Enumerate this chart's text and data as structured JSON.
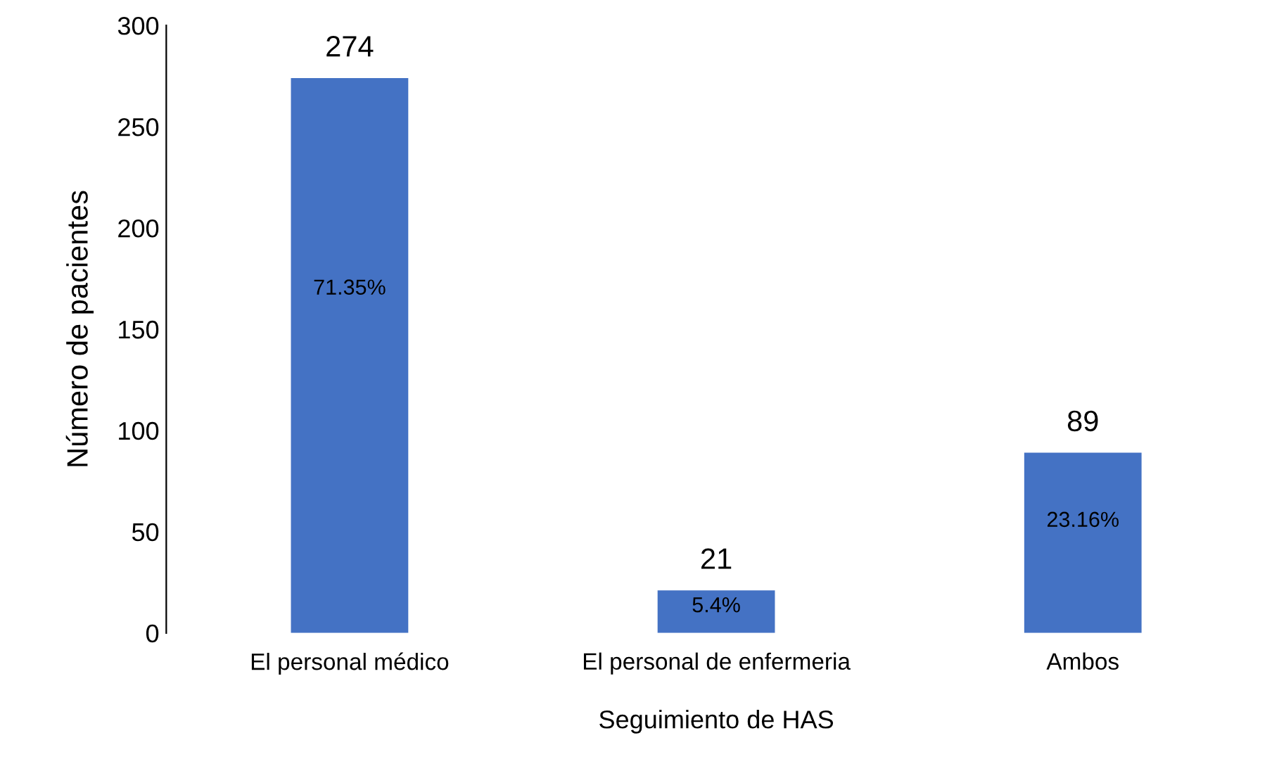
{
  "chart_data": {
    "type": "bar",
    "xlabel": "Seguimiento de HAS",
    "ylabel": "Número de pacientes",
    "categories": [
      "El personal médico",
      "El personal de enfermeria",
      "Ambos"
    ],
    "values": [
      274,
      21,
      89
    ],
    "color": "#4472c4",
    "data_labels": true,
    "annotations": [
      "71.35%",
      "5.4%",
      "23.16%"
    ],
    "ylim": [
      0,
      300
    ],
    "yticks": [
      0,
      50,
      100,
      150,
      200,
      250,
      300
    ],
    "grid": false,
    "legend": false
  }
}
